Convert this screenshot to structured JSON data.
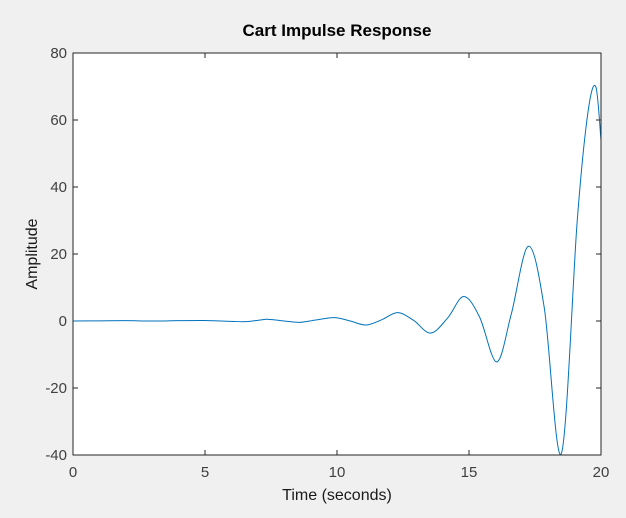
{
  "chart_data": {
    "type": "line",
    "title": "Cart Impulse Response",
    "xlabel": "Time (seconds)",
    "ylabel": "Amplitude",
    "xlim": [
      0,
      20
    ],
    "ylim": [
      -40,
      80
    ],
    "x_ticks": [
      0,
      5,
      10,
      15,
      20
    ],
    "y_ticks": [
      -40,
      -20,
      0,
      20,
      40,
      60,
      80
    ],
    "grid": false,
    "series": [
      {
        "color": "#0072bd",
        "x": [
          0,
          1,
          2,
          3,
          4,
          5,
          6,
          6.5,
          7,
          7.4,
          8,
          8.6,
          9.2,
          9.9,
          10.5,
          11.1,
          11.7,
          12.3,
          12.9,
          13.55,
          14.2,
          14.8,
          15.4,
          16.05,
          16.6,
          17.25,
          17.85,
          18.5,
          19.1,
          19.5,
          19.8,
          20
        ],
        "y": [
          0,
          0.05,
          0.1,
          0,
          0.1,
          0.15,
          -0.1,
          -0.2,
          0.2,
          0.5,
          0,
          -0.4,
          0.3,
          1.0,
          0,
          -1.2,
          0.4,
          2.5,
          0.2,
          -3.6,
          1.0,
          7.3,
          1.2,
          -12.2,
          2.0,
          22.3,
          4.0,
          -39.5,
          30,
          62,
          70,
          54
        ]
      }
    ]
  }
}
